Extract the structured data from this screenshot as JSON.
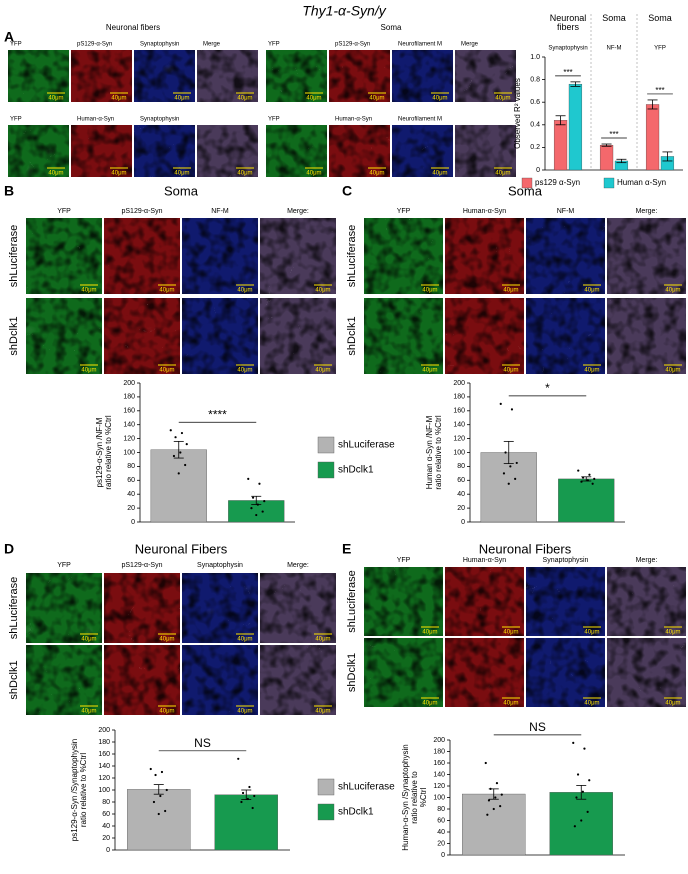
{
  "title": "Thy1-α-Syn/y",
  "scale_bar": "40μm",
  "panel_a": {
    "letter": "A",
    "groups": [
      {
        "title": "Neuronal fibers",
        "rows": [
          [
            "YFP",
            "pS129-α-Syn",
            "Synaptophysin",
            "Merge"
          ],
          [
            "YFP",
            "Human-α-Syn",
            "Synaptophysin"
          ]
        ]
      },
      {
        "title": "Soma",
        "rows": [
          [
            "YFP",
            "pS129-α-Syn",
            "Neurofilament M",
            "Merge"
          ],
          [
            "YFP",
            "Human-α-Syn",
            "Neurofilament M"
          ]
        ]
      }
    ]
  },
  "panels": [
    {
      "letter": "B",
      "title": "Soma",
      "columns": [
        "YFP",
        "pS129-α-Syn",
        "NF-M",
        "Merge:"
      ],
      "row_labels": [
        "shLuciferase",
        "shDclk1"
      ]
    },
    {
      "letter": "C",
      "title": "Soma",
      "columns": [
        "YFP",
        "Human-α-Syn",
        "NF-M",
        "Merge:"
      ],
      "row_labels": [
        "shLuciferase",
        "shDclk1"
      ]
    },
    {
      "letter": "D",
      "title": "Neuronal Fibers",
      "columns": [
        "YFP",
        "pS129-α-Syn",
        "Synaptophysin",
        "Merge:"
      ],
      "row_labels": [
        "shLuciferase",
        "shDclk1"
      ]
    },
    {
      "letter": "E",
      "title": "Neuronal Fibers",
      "columns": [
        "YFP",
        "Human-α-Syn",
        "Synaptophysin",
        "Merge:"
      ],
      "row_labels": [
        "shLuciferase",
        "shDclk1"
      ]
    }
  ],
  "chart_data": [
    {
      "type": "grouped_bar",
      "y_label": "Observed R² values",
      "group_headers": [
        {
          "title": "Neuronal fibers",
          "subtitle": "Synaptophysin"
        },
        {
          "title": "Soma",
          "subtitle": "NF-M"
        },
        {
          "title": "Soma",
          "subtitle": "YFP"
        }
      ],
      "series": [
        {
          "name": "ps129 α-Syn",
          "color": "#f4686c",
          "values": [
            0.44,
            0.22,
            0.58
          ],
          "errors": [
            0.04,
            0.01,
            0.04
          ]
        },
        {
          "name": "Human α-Syn",
          "color": "#1fc8cf",
          "values": [
            0.76,
            0.08,
            0.12
          ],
          "errors": [
            0.02,
            0.015,
            0.04
          ]
        }
      ],
      "significance": [
        "***",
        "***",
        "***"
      ],
      "ylim": [
        0,
        1
      ],
      "yticks": [
        0,
        0.2,
        0.4,
        0.6,
        0.8,
        {
          "value": 1,
          "label": "1.0"
        }
      ]
    },
    {
      "type": "bar",
      "y_label": [
        "ps129-α-Syn /NF-M",
        "ratio relative to %Ctrl"
      ],
      "categories": [
        "shLuciferase",
        "shDclk1"
      ],
      "colors": [
        "#b3b3b3",
        "#179a4f"
      ],
      "values": [
        104,
        31
      ],
      "errors": [
        12,
        6
      ],
      "points": [
        [
          132,
          128,
          122,
          112,
          100,
          95,
          82,
          70
        ],
        [
          62,
          55,
          35,
          30,
          25,
          20,
          15,
          10
        ]
      ],
      "significance": "****",
      "ylim": [
        0,
        200
      ],
      "yticks": [
        0,
        20,
        40,
        60,
        80,
        100,
        120,
        140,
        160,
        180,
        200
      ]
    },
    {
      "type": "bar",
      "y_label": [
        "Human α-Syn /NF-M",
        "ratio relative to %Ctrl"
      ],
      "colors": [
        "#b3b3b3",
        "#179a4f"
      ],
      "values": [
        100,
        62
      ],
      "errors": [
        16,
        3
      ],
      "points": [
        [
          170,
          162,
          100,
          85,
          80,
          70,
          62,
          55
        ],
        [
          74,
          68,
          64,
          62,
          60,
          58,
          55
        ]
      ],
      "significance": "*",
      "ylim": [
        0,
        200
      ],
      "yticks": [
        0,
        20,
        40,
        60,
        80,
        100,
        120,
        140,
        160,
        180,
        200
      ]
    },
    {
      "type": "bar",
      "y_label": [
        "ps129-α-Syn /Synaptophysin",
        "ratio relative to %Ctrl"
      ],
      "categories": [
        "shLuciferase",
        "shDclk1"
      ],
      "colors": [
        "#b3b3b3",
        "#179a4f"
      ],
      "values": [
        101,
        92
      ],
      "errors": [
        8,
        8
      ],
      "points": [
        [
          135,
          130,
          125,
          100,
          90,
          80,
          65,
          60
        ],
        [
          152,
          105,
          95,
          90,
          85,
          80,
          70
        ]
      ],
      "significance": "NS",
      "ylim": [
        0,
        200
      ],
      "yticks": [
        0,
        20,
        40,
        60,
        80,
        100,
        120,
        140,
        160,
        180,
        200
      ]
    },
    {
      "type": "bar",
      "y_label": [
        "Human-α-Syn /Synaptophysin",
        "ratio relative to",
        "%Ctrl"
      ],
      "colors": [
        "#b3b3b3",
        "#179a4f"
      ],
      "values": [
        106,
        109
      ],
      "errors": [
        9,
        12
      ],
      "points": [
        [
          160,
          125,
          115,
          105,
          100,
          95,
          85,
          80,
          70
        ],
        [
          195,
          185,
          140,
          130,
          110,
          100,
          75,
          60,
          50
        ]
      ],
      "significance": "NS",
      "ylim": [
        0,
        200
      ],
      "yticks": [
        0,
        20,
        40,
        60,
        80,
        100,
        120,
        140,
        160,
        180,
        200
      ]
    }
  ]
}
